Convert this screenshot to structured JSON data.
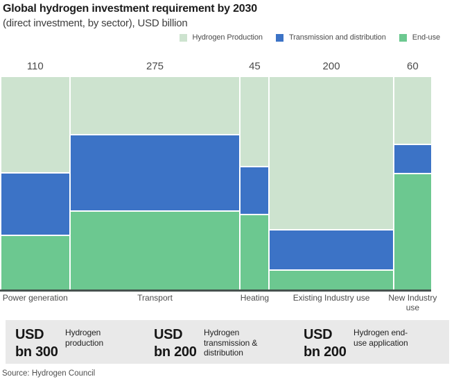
{
  "header": {
    "title": "Global hydrogen investment requirement by 2030",
    "subtitle": "(direct investment, by sector), USD billion"
  },
  "chart_data": {
    "type": "bar",
    "variant": "marimekko-stacked",
    "title": "Global hydrogen investment requirement by 2030",
    "subtitle": "(direct investment, by sector), USD billion",
    "value_unit": "USD billion",
    "legend_position": "top-right",
    "axis_line": "bottom",
    "categories": [
      "Power generation",
      "Transport",
      "Heating",
      "Existing Industry use",
      "New Industry use"
    ],
    "category_totals": [
      110,
      275,
      45,
      200,
      60
    ],
    "column_widths_proportional_to_totals": true,
    "stack_order": "top-to-bottom",
    "series": [
      {
        "name": "Hydrogen Production",
        "color": "#cde3cf",
        "values": [
          50,
          75,
          19,
          145,
          19
        ]
      },
      {
        "name": "Transmission and distribution",
        "color": "#3c73c6",
        "values": [
          32,
          98,
          10,
          37,
          8
        ]
      },
      {
        "name": "End-use",
        "color": "#6cc890",
        "values": [
          28,
          102,
          16,
          18,
          33
        ]
      }
    ]
  },
  "summary": {
    "items": [
      {
        "value": "USD bn 300",
        "label": "Hydrogen production"
      },
      {
        "value": "USD bn 200",
        "label": "Hydrogen transmission & distribution"
      },
      {
        "value": "USD bn 200",
        "label": "Hydrogen end-use application"
      }
    ]
  },
  "footer": {
    "source": "Source: Hydrogen Council"
  }
}
